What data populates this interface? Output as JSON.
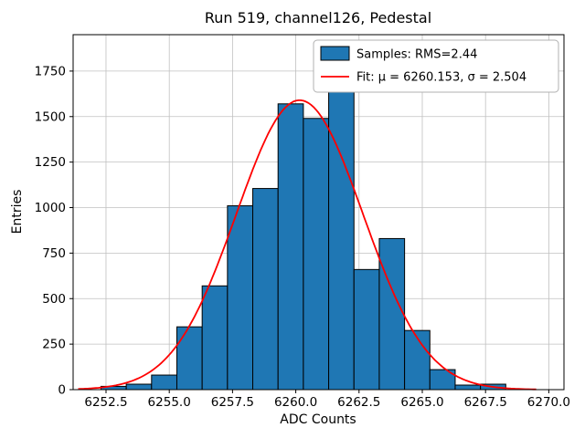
{
  "chart_data": {
    "type": "histogram",
    "title": "Run 519, channel126, Pedestal",
    "xlabel": "ADC Counts",
    "ylabel": "Entries",
    "xlim": [
      6251.2,
      6270.6
    ],
    "ylim": [
      0,
      1950
    ],
    "grid": true,
    "legend_position": "upper right",
    "xticks": [
      6252.5,
      6255.0,
      6257.5,
      6260.0,
      6262.5,
      6265.0,
      6267.5,
      6270.0
    ],
    "xtick_labels": [
      "6252.5",
      "6255.0",
      "6257.5",
      "6260.0",
      "6262.5",
      "6265.0",
      "6267.5",
      "6270.0"
    ],
    "yticks": [
      0,
      250,
      500,
      750,
      1000,
      1250,
      1500,
      1750
    ],
    "ytick_labels": [
      "0",
      "250",
      "500",
      "750",
      "1000",
      "1250",
      "1500",
      "1750"
    ],
    "bin_edges": [
      6252.3,
      6253.3,
      6254.3,
      6255.3,
      6256.3,
      6257.3,
      6258.3,
      6259.3,
      6260.3,
      6261.3,
      6262.3,
      6263.3,
      6264.3,
      6265.3,
      6266.3,
      6267.3,
      6268.3
    ],
    "counts": [
      18,
      30,
      80,
      345,
      570,
      1010,
      1105,
      1570,
      1490,
      1700,
      660,
      830,
      325,
      110,
      25,
      30
    ],
    "bar_color": "#1f77b4",
    "bar_edge_color": "#000000",
    "fit": {
      "mu": 6260.153,
      "sigma": 2.504,
      "amplitude": 1590,
      "color": "#ff0000"
    },
    "legend": [
      {
        "type": "patch",
        "label": "Samples: RMS=2.44"
      },
      {
        "type": "line",
        "label": "Fit: μ = 6260.153, σ = 2.504"
      }
    ]
  }
}
